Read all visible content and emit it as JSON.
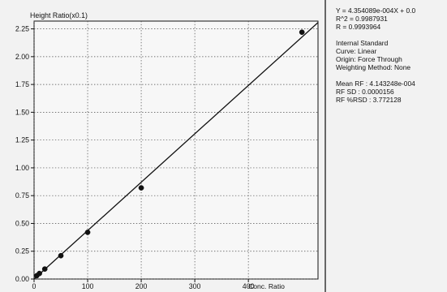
{
  "chart_data": {
    "type": "scatter",
    "ylabel": "Height Ratio(x0.1)",
    "xlabel": "Conc. Ratio",
    "xlim": [
      0,
      530
    ],
    "ylim": [
      0,
      2.32
    ],
    "xticks": [
      0,
      100,
      200,
      300,
      400
    ],
    "yticks": [
      0.0,
      0.25,
      0.5,
      0.75,
      1.0,
      1.25,
      1.5,
      1.75,
      2.0,
      2.25
    ],
    "xtick_labels": [
      "0",
      "100",
      "200",
      "300",
      "400"
    ],
    "ytick_labels": [
      "0.00",
      "0.25",
      "0.50",
      "0.75",
      "1.00",
      "1.25",
      "1.50",
      "1.75",
      "2.00",
      "2.25"
    ],
    "points": [
      {
        "x": 5,
        "y": 0.03
      },
      {
        "x": 10,
        "y": 0.05
      },
      {
        "x": 20,
        "y": 0.09
      },
      {
        "x": 50,
        "y": 0.21
      },
      {
        "x": 100,
        "y": 0.42
      },
      {
        "x": 200,
        "y": 0.82
      },
      {
        "x": 500,
        "y": 2.22
      }
    ],
    "fit_line": {
      "x1": 0,
      "y1": 0,
      "x2": 530,
      "y2": 2.307
    },
    "grid": true
  },
  "panel": {
    "equation": "Y = 4.354089e-004X + 0.0",
    "r2": "R^2 = 0.9987931",
    "r": "R = 0.9993964",
    "internal_standard": "Internal Standard",
    "curve": "Curve: Linear",
    "origin": "Origin: Force Through",
    "weighting": "Weighting Method: None",
    "mean_rf": "Mean RF : 4.143248e-004",
    "rf_sd": "RF SD : 0.0000156",
    "rf_rsd": "RF %RSD : 3.772128"
  }
}
